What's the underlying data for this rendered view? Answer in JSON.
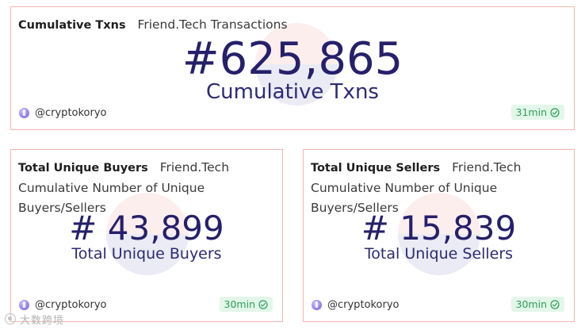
{
  "cards": [
    {
      "title": "Cumulative Txns",
      "subtitle": "Friend.Tech Transactions",
      "description": "",
      "value": "#625,865",
      "value_label": "Cumulative Txns",
      "author": "@cryptokoryo",
      "freshness": "31min"
    },
    {
      "title": "Total Unique Buyers",
      "subtitle": "Friend.Tech",
      "description": "Cumulative Number of Unique Buyers/Sellers",
      "value": "# 43,899",
      "value_label": "Total Unique Buyers",
      "author": "@cryptokoryo",
      "freshness": "30min"
    },
    {
      "title": "Total Unique Sellers",
      "subtitle": "Friend.Tech",
      "description": "Cumulative Number of Unique Buyers/Sellers",
      "value": "# 15,839",
      "value_label": "Total Unique Sellers",
      "author": "@cryptokoryo",
      "freshness": "30min"
    }
  ],
  "source_watermark": "大数跨境",
  "colors": {
    "card_border": "#f1b8b2",
    "value_text": "#26206b",
    "fresh_badge_bg": "#e3f6ea",
    "fresh_badge_text": "#2e9e5b"
  }
}
